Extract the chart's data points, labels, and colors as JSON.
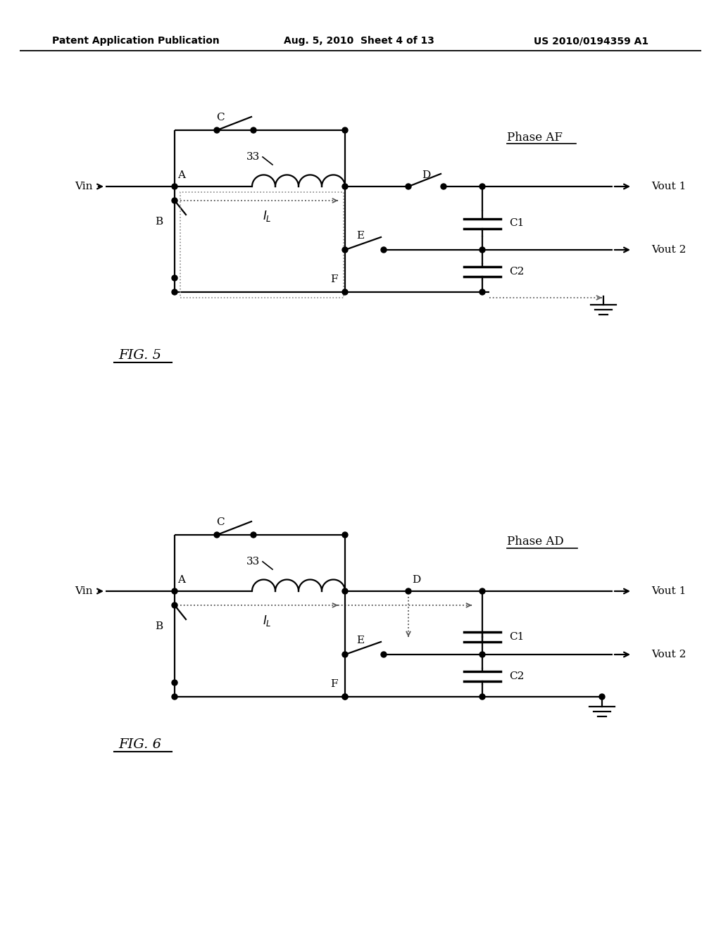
{
  "header_left": "Patent Application Publication",
  "header_mid": "Aug. 5, 2010  Sheet 4 of 13",
  "header_right": "US 2010/0194359 A1",
  "fig5_label": "FIG. 5",
  "fig6_label": "FIG. 6",
  "phase_af": "Phase AF",
  "phase_ad": "Phase AD",
  "bg_color": "#ffffff"
}
